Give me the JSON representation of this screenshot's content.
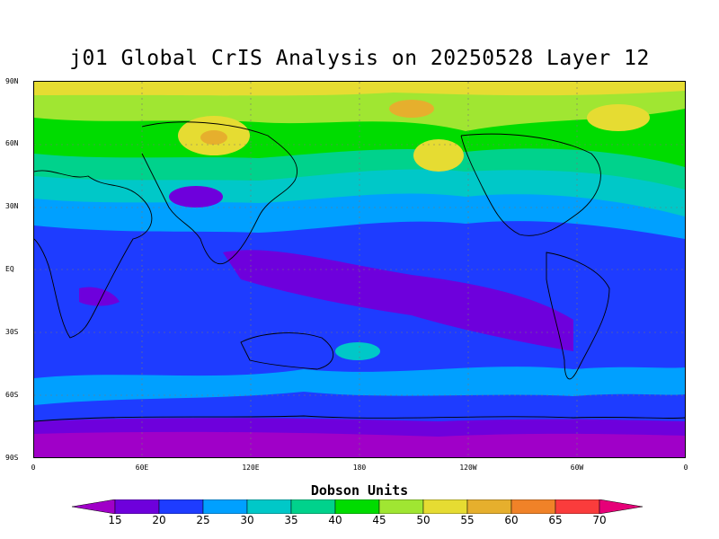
{
  "title": "j01 Global CrIS Analysis on 20250528 Layer 12",
  "lat_labels": [
    "90N",
    "60N",
    "30N",
    "EQ",
    "30S",
    "60S",
    "90S"
  ],
  "lon_labels": [
    "0",
    "60E",
    "120E",
    "180",
    "120W",
    "60W",
    "0"
  ],
  "colorbar": {
    "title": "Dobson Units",
    "ticks": [
      "15",
      "20",
      "25",
      "30",
      "35",
      "40",
      "45",
      "50",
      "55",
      "60",
      "65",
      "70"
    ],
    "colors": [
      "#a000c8",
      "#6e00dc",
      "#1e3cff",
      "#00a0ff",
      "#00c8c8",
      "#00d28c",
      "#00dc00",
      "#a0e632",
      "#e6dc32",
      "#e6af2d",
      "#f08228",
      "#fa3c3c",
      "#e60078"
    ]
  },
  "map": {
    "ocean_color": "#1e3cff",
    "land_outline_color": "#000000"
  }
}
